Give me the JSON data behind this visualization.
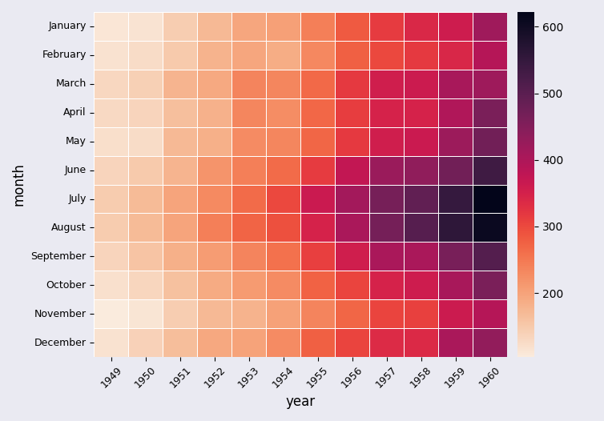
{
  "title": "",
  "xlabel": "year",
  "ylabel": "month",
  "cmap": "rocket_r",
  "figsize": [
    7.54,
    5.26
  ],
  "dpi": 100,
  "months": [
    "January",
    "February",
    "March",
    "April",
    "May",
    "June",
    "July",
    "August",
    "September",
    "October",
    "November",
    "December"
  ],
  "years": [
    1949,
    1950,
    1951,
    1952,
    1953,
    1954,
    1955,
    1956,
    1957,
    1958,
    1959,
    1960
  ],
  "data": [
    [
      112,
      115,
      145,
      171,
      196,
      204,
      242,
      284,
      315,
      340,
      360,
      417
    ],
    [
      118,
      126,
      150,
      180,
      196,
      188,
      233,
      277,
      301,
      318,
      342,
      391
    ],
    [
      132,
      141,
      178,
      193,
      236,
      235,
      267,
      317,
      356,
      362,
      406,
      419
    ],
    [
      129,
      135,
      163,
      181,
      235,
      227,
      269,
      313,
      348,
      348,
      396,
      461
    ],
    [
      121,
      125,
      172,
      183,
      229,
      234,
      270,
      318,
      355,
      363,
      420,
      472
    ],
    [
      135,
      149,
      178,
      218,
      243,
      264,
      315,
      374,
      422,
      435,
      472,
      535
    ],
    [
      148,
      170,
      199,
      230,
      264,
      302,
      364,
      413,
      465,
      491,
      548,
      622
    ],
    [
      148,
      170,
      199,
      242,
      272,
      293,
      347,
      405,
      467,
      505,
      559,
      606
    ],
    [
      136,
      158,
      184,
      209,
      237,
      259,
      312,
      355,
      404,
      404,
      463,
      508
    ],
    [
      119,
      133,
      162,
      191,
      211,
      229,
      274,
      306,
      347,
      359,
      407,
      461
    ],
    [
      104,
      114,
      146,
      172,
      180,
      203,
      237,
      271,
      305,
      310,
      362,
      390
    ],
    [
      118,
      140,
      166,
      194,
      201,
      229,
      278,
      306,
      336,
      337,
      405,
      432
    ]
  ],
  "linewidths": 0.5,
  "linecolor": "white",
  "cbar_label_fontsize": 10,
  "axis_label_fontsize": 12,
  "tick_fontsize": 9,
  "background_color": "#eaeaf2"
}
